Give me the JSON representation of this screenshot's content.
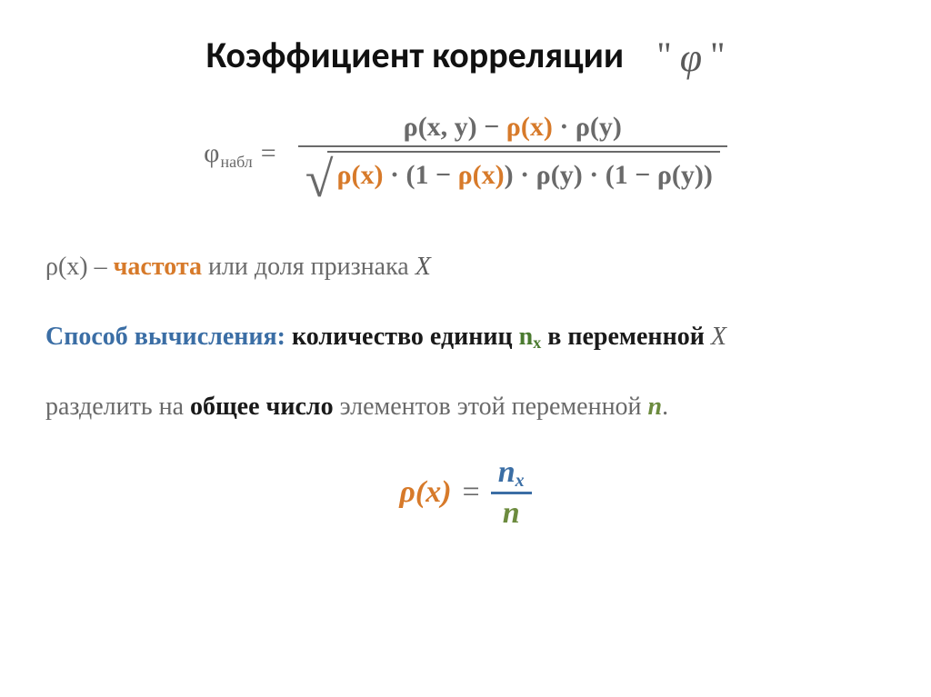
{
  "colors": {
    "background": "#ffffff",
    "title": "#111111",
    "gray": "#6a6a6a",
    "orange": "#d77a2a",
    "blue": "#3b6ea5",
    "green": "#6c8b3e",
    "black": "#1a1a1a"
  },
  "title": {
    "text": "Коэффициент корреляции",
    "quote_open": "\"",
    "phi": "φ",
    "quote_close": "\"",
    "fontsize": 40
  },
  "formula1": {
    "lhs_phi": "φ",
    "lhs_sub": "набл",
    "eq": "=",
    "num": {
      "rho_xy": "ρ(x, y)",
      "minus": " − ",
      "rho_x": "ρ(x)",
      "dot1": " · ",
      "rho_y": "ρ(y)"
    },
    "den": {
      "rho_x1": "ρ(x)",
      "dot1": " · ",
      "open1": "(1 − ",
      "rho_x2": "ρ(x)",
      "close1": ")",
      "dot2": " · ",
      "rho_y1": "ρ(y)",
      "dot3": " · ",
      "open2": "(1 − ",
      "rho_y2": "ρ(y)",
      "close2": ")"
    },
    "fontsize": 30
  },
  "body": {
    "line1": {
      "rho_x": "ρ(x)",
      "dash": " – ",
      "freq": "частота",
      "rest": " или доля признака ",
      "X": "X"
    },
    "line2": {
      "label": "Способ вычисления:",
      "rest1": " количество единиц ",
      "nx_n": "n",
      "nx_sub": "x",
      "rest2": " в переменной ",
      "X": "X"
    },
    "line3": {
      "part1": "разделить на ",
      "bold": "общее число",
      "part2": " элементов этой переменной ",
      "n": "n",
      "dot": "."
    },
    "fontsize": 28
  },
  "formula2": {
    "lhs": "ρ(x)",
    "eq": "=",
    "num_n": "n",
    "num_sub": "x",
    "den": "n",
    "fontsize": 34
  }
}
